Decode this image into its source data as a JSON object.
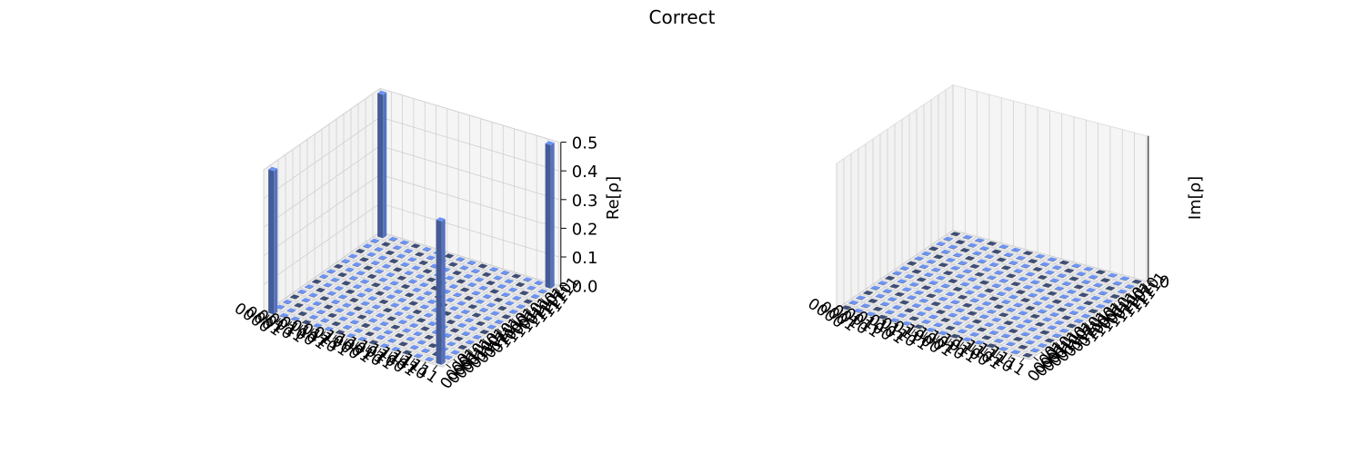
{
  "title": "Correct",
  "colors": {
    "bar_positive": "#6d93f3",
    "bar_zero_dark": "#3d4d77",
    "pane": "#f2f2f2",
    "grid": "#d0d0d0"
  },
  "chart_data": [
    {
      "type": "bar3d",
      "name": "real-part",
      "zlabel": "Re[ρ]",
      "zlim": [
        0,
        0.5
      ],
      "zticks": [
        "0.0",
        "0.1",
        "0.2",
        "0.3",
        "0.4",
        "0.5"
      ],
      "row_labels": [
        "0000",
        "0001",
        "0010",
        "0011",
        "0100",
        "0101",
        "0110",
        "0111",
        "1000",
        "1001",
        "1010",
        "1011",
        "1100",
        "1101",
        "1110",
        "1111"
      ],
      "col_labels": [
        "0000",
        "0001",
        "0010",
        "0011",
        "0100",
        "0101",
        "0110",
        "0111",
        "1000",
        "1001",
        "1010",
        "1011",
        "1100",
        "1101",
        "1110",
        "1111"
      ],
      "nonzero": [
        {
          "row": 0,
          "col": 0,
          "value": 0.5
        },
        {
          "row": 0,
          "col": 15,
          "value": 0.5
        },
        {
          "row": 15,
          "col": 0,
          "value": 0.5
        },
        {
          "row": 15,
          "col": 15,
          "value": 0.5
        }
      ],
      "default_value": 0
    },
    {
      "type": "bar3d",
      "name": "imaginary-part",
      "zlabel": "Im[ρ]",
      "zticks": [
        "0"
      ],
      "row_labels": [
        "0000",
        "0001",
        "0010",
        "0011",
        "0100",
        "0101",
        "0110",
        "0111",
        "1000",
        "1001",
        "1010",
        "1011",
        "1100",
        "1101",
        "1110",
        "1111"
      ],
      "col_labels": [
        "0000",
        "0001",
        "0010",
        "0011",
        "0100",
        "0101",
        "0110",
        "0111",
        "1000",
        "1001",
        "1010",
        "1011",
        "1100",
        "1101",
        "1110",
        "1111"
      ],
      "nonzero": [],
      "default_value": 0
    }
  ]
}
